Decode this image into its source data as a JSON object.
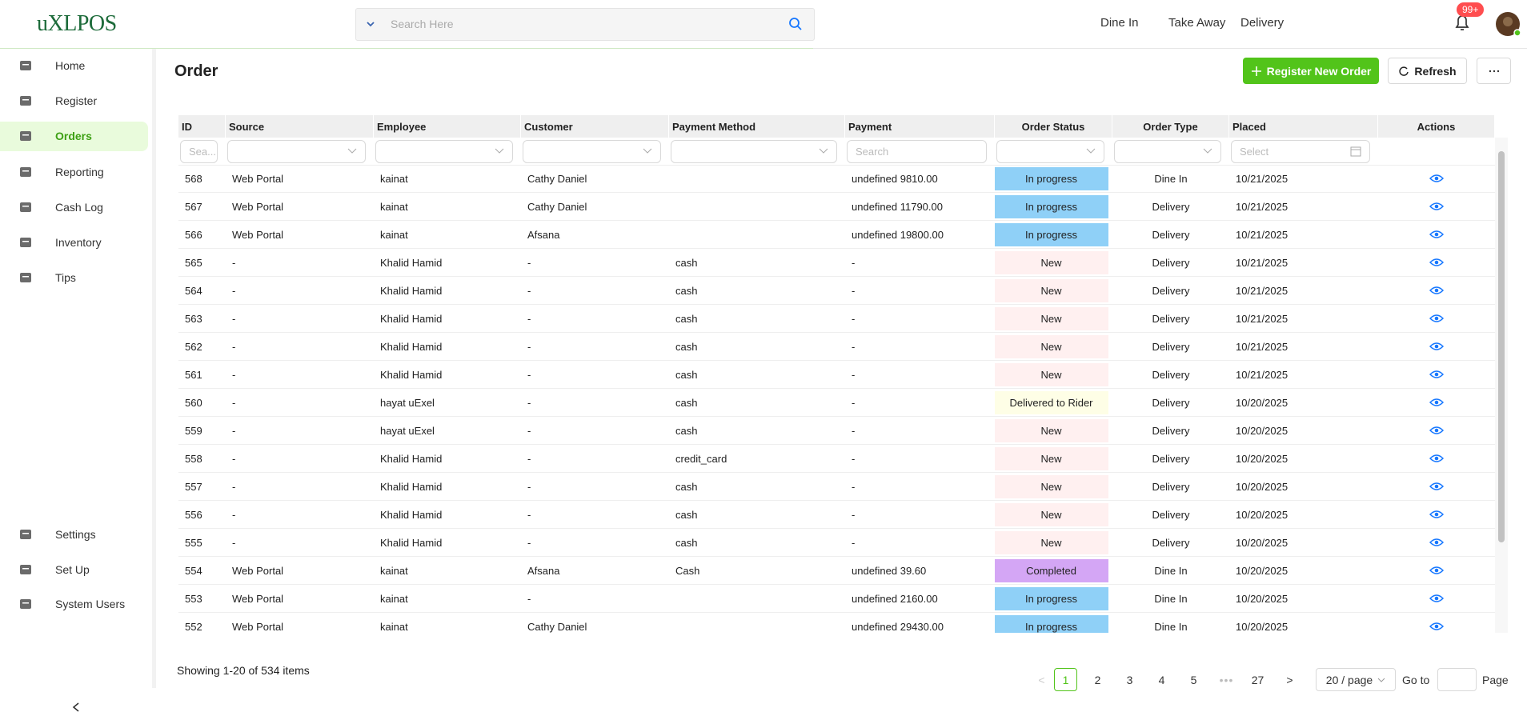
{
  "header": {
    "logo": "uXLPOS",
    "search_placeholder": "Search Here",
    "nav": [
      "Dine In",
      "Take Away",
      "Delivery"
    ],
    "badge": "99+"
  },
  "sidebar": {
    "main": [
      "Home",
      "Register",
      "Orders",
      "Reporting",
      "Cash Log",
      "Inventory",
      "Tips"
    ],
    "bottom": [
      "Settings",
      "Set Up",
      "System Users"
    ],
    "active": 2
  },
  "page": {
    "title": "Order",
    "buttons": {
      "register": "Register New Order",
      "refresh": "Refresh"
    }
  },
  "table": {
    "columns": [
      "ID",
      "Source",
      "Employee",
      "Customer",
      "Payment Method",
      "Payment",
      "Order Status",
      "Order Type",
      "Placed",
      "Actions"
    ],
    "filters": [
      "Sea...",
      null,
      null,
      null,
      null,
      "Search",
      null,
      null,
      "Select",
      null
    ],
    "rows": [
      [
        568,
        "Web Portal",
        "kainat",
        "Cathy Daniel",
        null,
        "undefined 9810.00",
        {
          "label": "In progress",
          "color": "#8fd0f7"
        },
        "Dine In",
        "10/21/2025"
      ],
      [
        567,
        "Web Portal",
        "kainat",
        "Cathy Daniel",
        null,
        "undefined 11790.00",
        {
          "label": "In progress",
          "color": "#8fd0f7"
        },
        "Delivery",
        "10/21/2025"
      ],
      [
        566,
        "Web Portal",
        "kainat",
        "Afsana",
        null,
        "undefined 19800.00",
        {
          "label": "In progress",
          "color": "#8fd0f7"
        },
        "Delivery",
        "10/21/2025"
      ],
      [
        565,
        "-",
        "Khalid Hamid",
        "-",
        "cash",
        "-",
        {
          "label": "New",
          "color": "#fff0f0"
        },
        "Delivery",
        "10/21/2025"
      ],
      [
        564,
        "-",
        "Khalid Hamid",
        "-",
        "cash",
        "-",
        {
          "label": "New",
          "color": "#fff0f0"
        },
        "Delivery",
        "10/21/2025"
      ],
      [
        563,
        "-",
        "Khalid Hamid",
        "-",
        "cash",
        "-",
        {
          "label": "New",
          "color": "#fff0f0"
        },
        "Delivery",
        "10/21/2025"
      ],
      [
        562,
        "-",
        "Khalid Hamid",
        "-",
        "cash",
        "-",
        {
          "label": "New",
          "color": "#fff0f0"
        },
        "Delivery",
        "10/21/2025"
      ],
      [
        561,
        "-",
        "Khalid Hamid",
        "-",
        "cash",
        "-",
        {
          "label": "New",
          "color": "#fff0f0"
        },
        "Delivery",
        "10/21/2025"
      ],
      [
        560,
        "-",
        "hayat uExel",
        "-",
        "cash",
        "-",
        {
          "label": "Delivered to Rider",
          "color": "#fefee6"
        },
        "Delivery",
        "10/20/2025"
      ],
      [
        559,
        "-",
        "hayat uExel",
        "-",
        "cash",
        "-",
        {
          "label": "New",
          "color": "#fff0f0"
        },
        "Delivery",
        "10/20/2025"
      ],
      [
        558,
        "-",
        "Khalid Hamid",
        "-",
        "credit_card",
        "-",
        {
          "label": "New",
          "color": "#fff0f0"
        },
        "Delivery",
        "10/20/2025"
      ],
      [
        557,
        "-",
        "Khalid Hamid",
        "-",
        "cash",
        "-",
        {
          "label": "New",
          "color": "#fff0f0"
        },
        "Delivery",
        "10/20/2025"
      ],
      [
        556,
        "-",
        "Khalid Hamid",
        "-",
        "cash",
        "-",
        {
          "label": "New",
          "color": "#fff0f0"
        },
        "Delivery",
        "10/20/2025"
      ],
      [
        555,
        "-",
        "Khalid Hamid",
        "-",
        "cash",
        "-",
        {
          "label": "New",
          "color": "#fff0f0"
        },
        "Delivery",
        "10/20/2025"
      ],
      [
        554,
        "Web Portal",
        "kainat",
        "Afsana",
        "Cash",
        "undefined 39.60",
        {
          "label": "Completed",
          "color": "#d4a6f5"
        },
        "Dine In",
        "10/20/2025"
      ],
      [
        553,
        "Web Portal",
        "kainat",
        "-",
        null,
        "undefined 2160.00",
        {
          "label": "In progress",
          "color": "#8fd0f7"
        },
        "Dine In",
        "10/20/2025"
      ],
      [
        552,
        "Web Portal",
        "kainat",
        "Cathy Daniel",
        null,
        "undefined 29430.00",
        {
          "label": "In progress",
          "color": "#8fd0f7"
        },
        "Dine In",
        "10/20/2025"
      ]
    ]
  },
  "footer": {
    "showing": "Showing 1-20 of 534 items",
    "pages": [
      1,
      2,
      3,
      4,
      5,
      27
    ],
    "current": 0,
    "page_size": "20 / page",
    "goto": "Go to",
    "page_suffix": "Page"
  }
}
